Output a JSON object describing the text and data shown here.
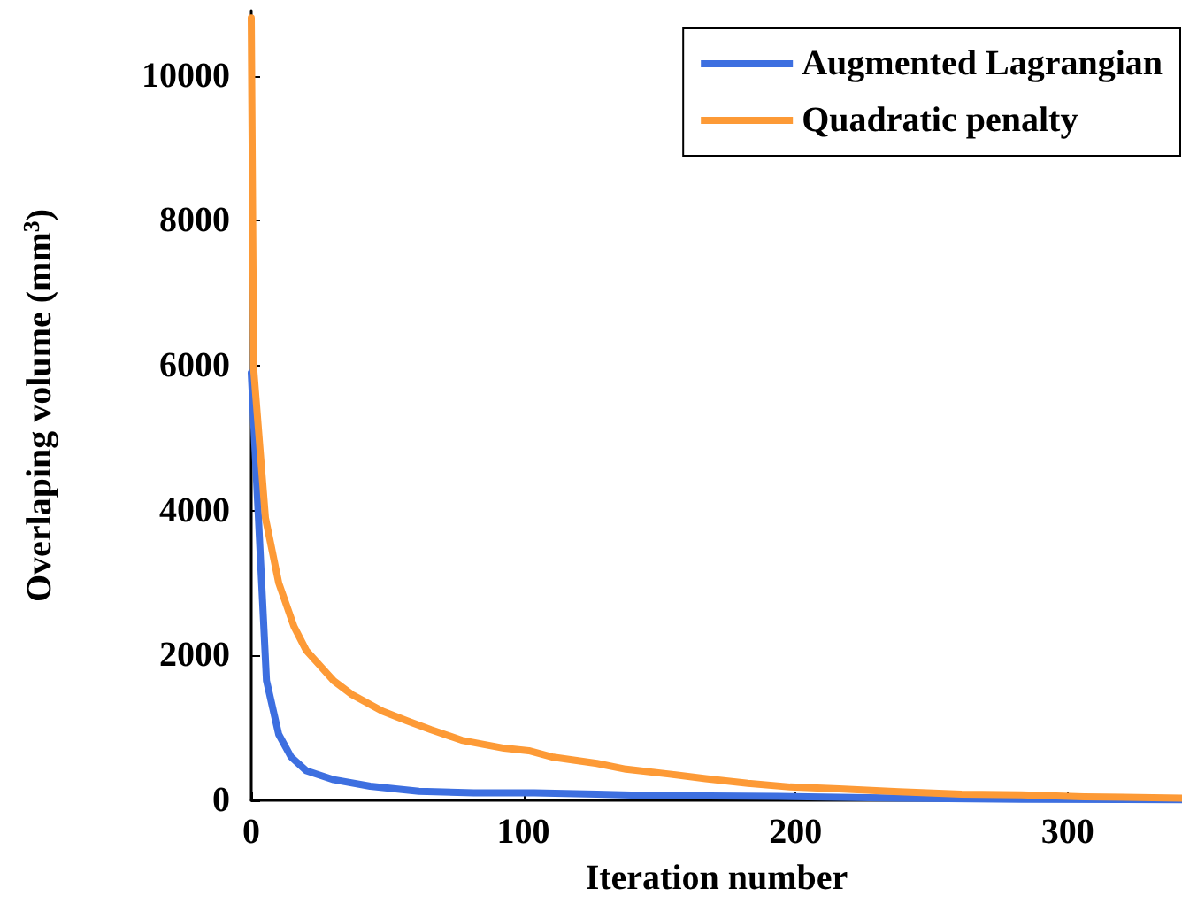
{
  "chart_data": {
    "type": "line",
    "xlabel": "Iteration number",
    "ylabel": "Overlaping volume (mm$^{3}$)",
    "xlim": [
      0,
      342
    ],
    "xticks": [
      0,
      100,
      200,
      300
    ],
    "ylim": [
      0,
      10900
    ],
    "yticks": [
      0,
      2000,
      4000,
      6000,
      8000,
      10000
    ],
    "grid": false,
    "legend": "top right",
    "marker": "none",
    "line_style": "solid",
    "series": [
      {
        "name": "Augmented Lagrangian",
        "color": "#3d6fe0",
        "x": [
          0,
          5.6,
          10.1,
          14.6,
          20.2,
          30.3,
          43.7,
          61.6,
          81.8,
          104,
          127,
          149,
          193.5,
          238,
          283,
          342
        ],
        "values": [
          5900,
          1650,
          910,
          600,
          410,
          285,
          195,
          125,
          105,
          105,
          85,
          65,
          55,
          30,
          15,
          10
        ]
      },
      {
        "name": "Quadratic penalty",
        "color": "#fd9a36",
        "x": [
          0,
          0.9,
          5.2,
          10.1,
          15.7,
          20.2,
          30.3,
          37,
          48.2,
          57.1,
          66.1,
          77.3,
          92.9,
          102,
          111,
          127,
          137.7,
          153,
          167,
          182.5,
          198,
          216,
          238,
          261,
          283,
          306,
          342
        ],
        "values": [
          10800,
          5950,
          3900,
          3000,
          2400,
          2070,
          1650,
          1460,
          1230,
          1100,
          975,
          830,
          720,
          685,
          595,
          510,
          430,
          365,
          300,
          235,
          185,
          160,
          120,
          85,
          75,
          50,
          30
        ]
      }
    ]
  }
}
